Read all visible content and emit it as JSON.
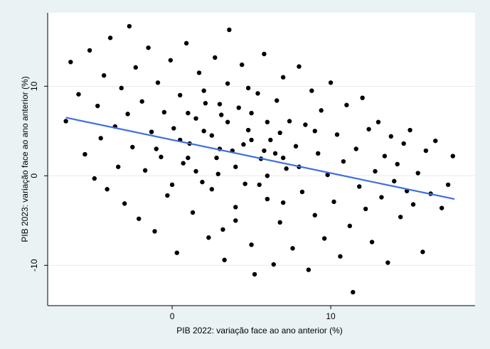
{
  "chart_data": {
    "type": "scatter",
    "x_label": "PIB 2022: variação face ao ano anterior (%)",
    "y_label": "PIB 2023: variação face ao ano anterior (%)",
    "xlim": [
      -7.85,
      19.1
    ],
    "ylim": [
      -14.5,
      18.2
    ],
    "xticks": [
      0,
      10
    ],
    "yticks": [
      -10,
      0,
      10
    ],
    "grid": true,
    "series": [
      {
        "type": "scatter",
        "color": "#000000",
        "x": [
          -6.7,
          -6.4,
          -5.9,
          -5.5,
          -5.2,
          -4.9,
          -4.7,
          -4.5,
          -4.3,
          -4.1,
          -3.9,
          -3.6,
          -3.4,
          -3.2,
          -3.0,
          -2.8,
          -2.7,
          -2.5,
          -2.3,
          -2.1,
          -1.9,
          -1.7,
          -1.5,
          -1.3,
          -1.1,
          -0.9,
          -0.7,
          -0.5,
          -0.3,
          -0.1,
          0.1,
          0.3,
          0.5,
          0.7,
          0.9,
          1.1,
          1.3,
          1.5,
          1.7,
          1.9,
          2.1,
          2.3,
          2.5,
          2.7,
          2.9,
          3.1,
          3.3,
          3.5,
          3.6,
          3.8,
          4.0,
          4.2,
          4.4,
          4.6,
          4.8,
          5.0,
          5.2,
          5.4,
          5.6,
          5.8,
          6.0,
          6.2,
          6.4,
          6.6,
          6.8,
          7.0,
          7.2,
          7.4,
          7.6,
          7.8,
          8.0,
          8.2,
          8.4,
          8.6,
          8.8,
          9.0,
          9.2,
          9.4,
          9.6,
          9.8,
          10.0,
          10.2,
          10.4,
          10.6,
          10.8,
          11.0,
          11.2,
          11.4,
          11.6,
          11.8,
          12.0,
          12.2,
          12.4,
          12.6,
          12.8,
          13.0,
          13.2,
          13.4,
          13.6,
          13.8,
          14.0,
          14.2,
          14.4,
          14.6,
          14.8,
          15.0,
          15.2,
          15.5,
          15.8,
          16.0,
          16.3,
          16.6,
          17.0,
          17.4,
          17.7,
          1.0,
          2.0,
          3.0,
          4.0,
          5.0,
          6.0,
          7.0,
          3.5,
          2.5,
          4.5,
          5.5,
          6.5,
          1.5,
          0.5,
          3.0,
          4.0,
          5.0,
          6.0,
          7.0,
          2.0,
          1.0,
          8.0,
          9.0,
          3.2,
          4.8,
          0.0,
          -1.0,
          2.8,
          5.8,
          6.8
        ],
        "values": [
          6.1,
          12.7,
          9.1,
          2.4,
          14.0,
          -0.3,
          7.8,
          4.2,
          11.2,
          -1.5,
          15.4,
          5.5,
          1.0,
          9.8,
          -3.1,
          6.9,
          16.7,
          3.2,
          12.1,
          -4.8,
          8.3,
          0.6,
          14.3,
          4.9,
          -6.2,
          10.4,
          2.1,
          7.1,
          -2.2,
          12.9,
          5.3,
          -8.6,
          9.0,
          1.4,
          14.8,
          3.6,
          -4.1,
          6.4,
          11.5,
          -0.7,
          8.1,
          -6.9,
          4.5,
          13.2,
          0.2,
          6.8,
          -9.4,
          10.3,
          16.3,
          2.8,
          -3.5,
          7.6,
          12.4,
          -0.9,
          5.1,
          -7.7,
          -11.0,
          9.2,
          1.9,
          13.6,
          -2.6,
          4.0,
          -9.9,
          8.4,
          -5.2,
          11.0,
          0.8,
          6.1,
          -8.1,
          3.3,
          12.2,
          -1.8,
          5.7,
          -10.5,
          9.5,
          -4.4,
          2.5,
          7.3,
          -7.0,
          0.1,
          10.4,
          -2.9,
          4.6,
          -9.0,
          1.6,
          7.9,
          -5.6,
          -13.0,
          3.0,
          -1.2,
          8.7,
          -3.7,
          5.2,
          -7.4,
          0.5,
          6.0,
          -2.4,
          2.2,
          -9.7,
          4.4,
          -0.6,
          1.3,
          -4.6,
          3.6,
          -1.7,
          5.1,
          -3.2,
          0.3,
          -8.5,
          2.8,
          -2.0,
          3.9,
          -3.6,
          -1.0,
          2.2,
          2.0,
          5.0,
          3.0,
          1.0,
          4.0,
          6.0,
          2.0,
          6.0,
          -1.5,
          3.5,
          -1.0,
          2.5,
          0.5,
          4.0,
          8.0,
          -5.0,
          7.0,
          0.0,
          -3.0,
          9.5,
          7.0,
          1.0,
          5.0,
          -6.0,
          9.8,
          -1.0,
          3.0,
          2.0,
          2.8,
          4.8
        ]
      },
      {
        "type": "line",
        "color": "#3f6fe0",
        "x": [
          -6.7,
          17.8
        ],
        "values": [
          6.5,
          -2.6
        ]
      }
    ]
  }
}
